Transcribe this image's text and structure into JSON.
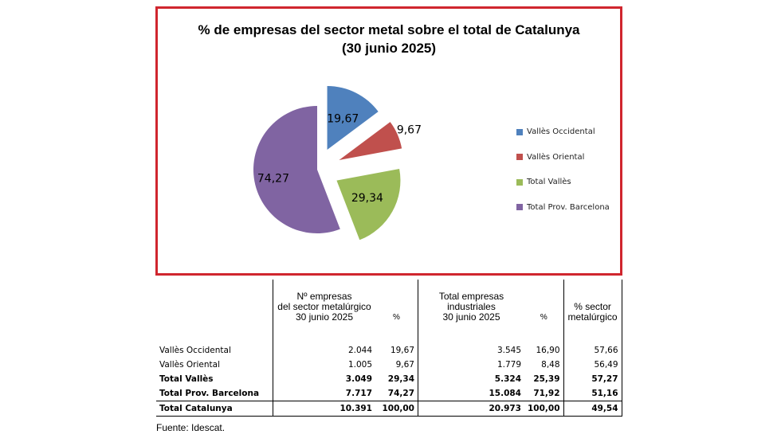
{
  "chart_data": {
    "type": "pie",
    "title": "% de empresas del sector metal sobre el total de Catalunya (30 junio 2025)",
    "title_lines": [
      "% de empresas del sector metal sobre el total de Catalunya",
      "(30 junio 2025)"
    ],
    "categories": [
      "Vallès Occidental",
      "Vallès Oriental",
      "Total Vallès",
      "Total Prov. Barcelona"
    ],
    "values": [
      19.67,
      9.67,
      29.34,
      74.27
    ],
    "labels": [
      "19,67",
      "9,67",
      "29,34",
      "74,27"
    ],
    "colors": [
      "#4f81bd",
      "#c0504d",
      "#9bbb59",
      "#8064a2"
    ],
    "legend": "right"
  },
  "table": {
    "headers": [
      [
        "",
        "Nº empresas\ndel sector metalúrgico\n30 junio 2025",
        "%",
        "Total empresas\nindustriales\n30 junio 2025",
        "%",
        "% sector\nmetalúrgico"
      ]
    ],
    "rows": [
      {
        "label": "Vallès Occidental",
        "cells": [
          "2.044",
          "19,67",
          "3.545",
          "16,90",
          "57,66"
        ],
        "bold": false
      },
      {
        "label": "Vallès Oriental",
        "cells": [
          "1.005",
          "9,67",
          "1.779",
          "8,48",
          "56,49"
        ],
        "bold": false
      },
      {
        "label": "Total Vallès",
        "cells": [
          "3.049",
          "29,34",
          "5.324",
          "25,39",
          "57,27"
        ],
        "bold": true
      },
      {
        "label": "Total Prov. Barcelona",
        "cells": [
          "7.717",
          "74,27",
          "15.084",
          "71,92",
          "51,16"
        ],
        "bold": true
      },
      {
        "label": "Total Catalunya",
        "cells": [
          "10.391",
          "100,00",
          "20.973",
          "100,00",
          "49,54"
        ],
        "bold": true
      }
    ]
  },
  "source": "Fuente: Idescat."
}
